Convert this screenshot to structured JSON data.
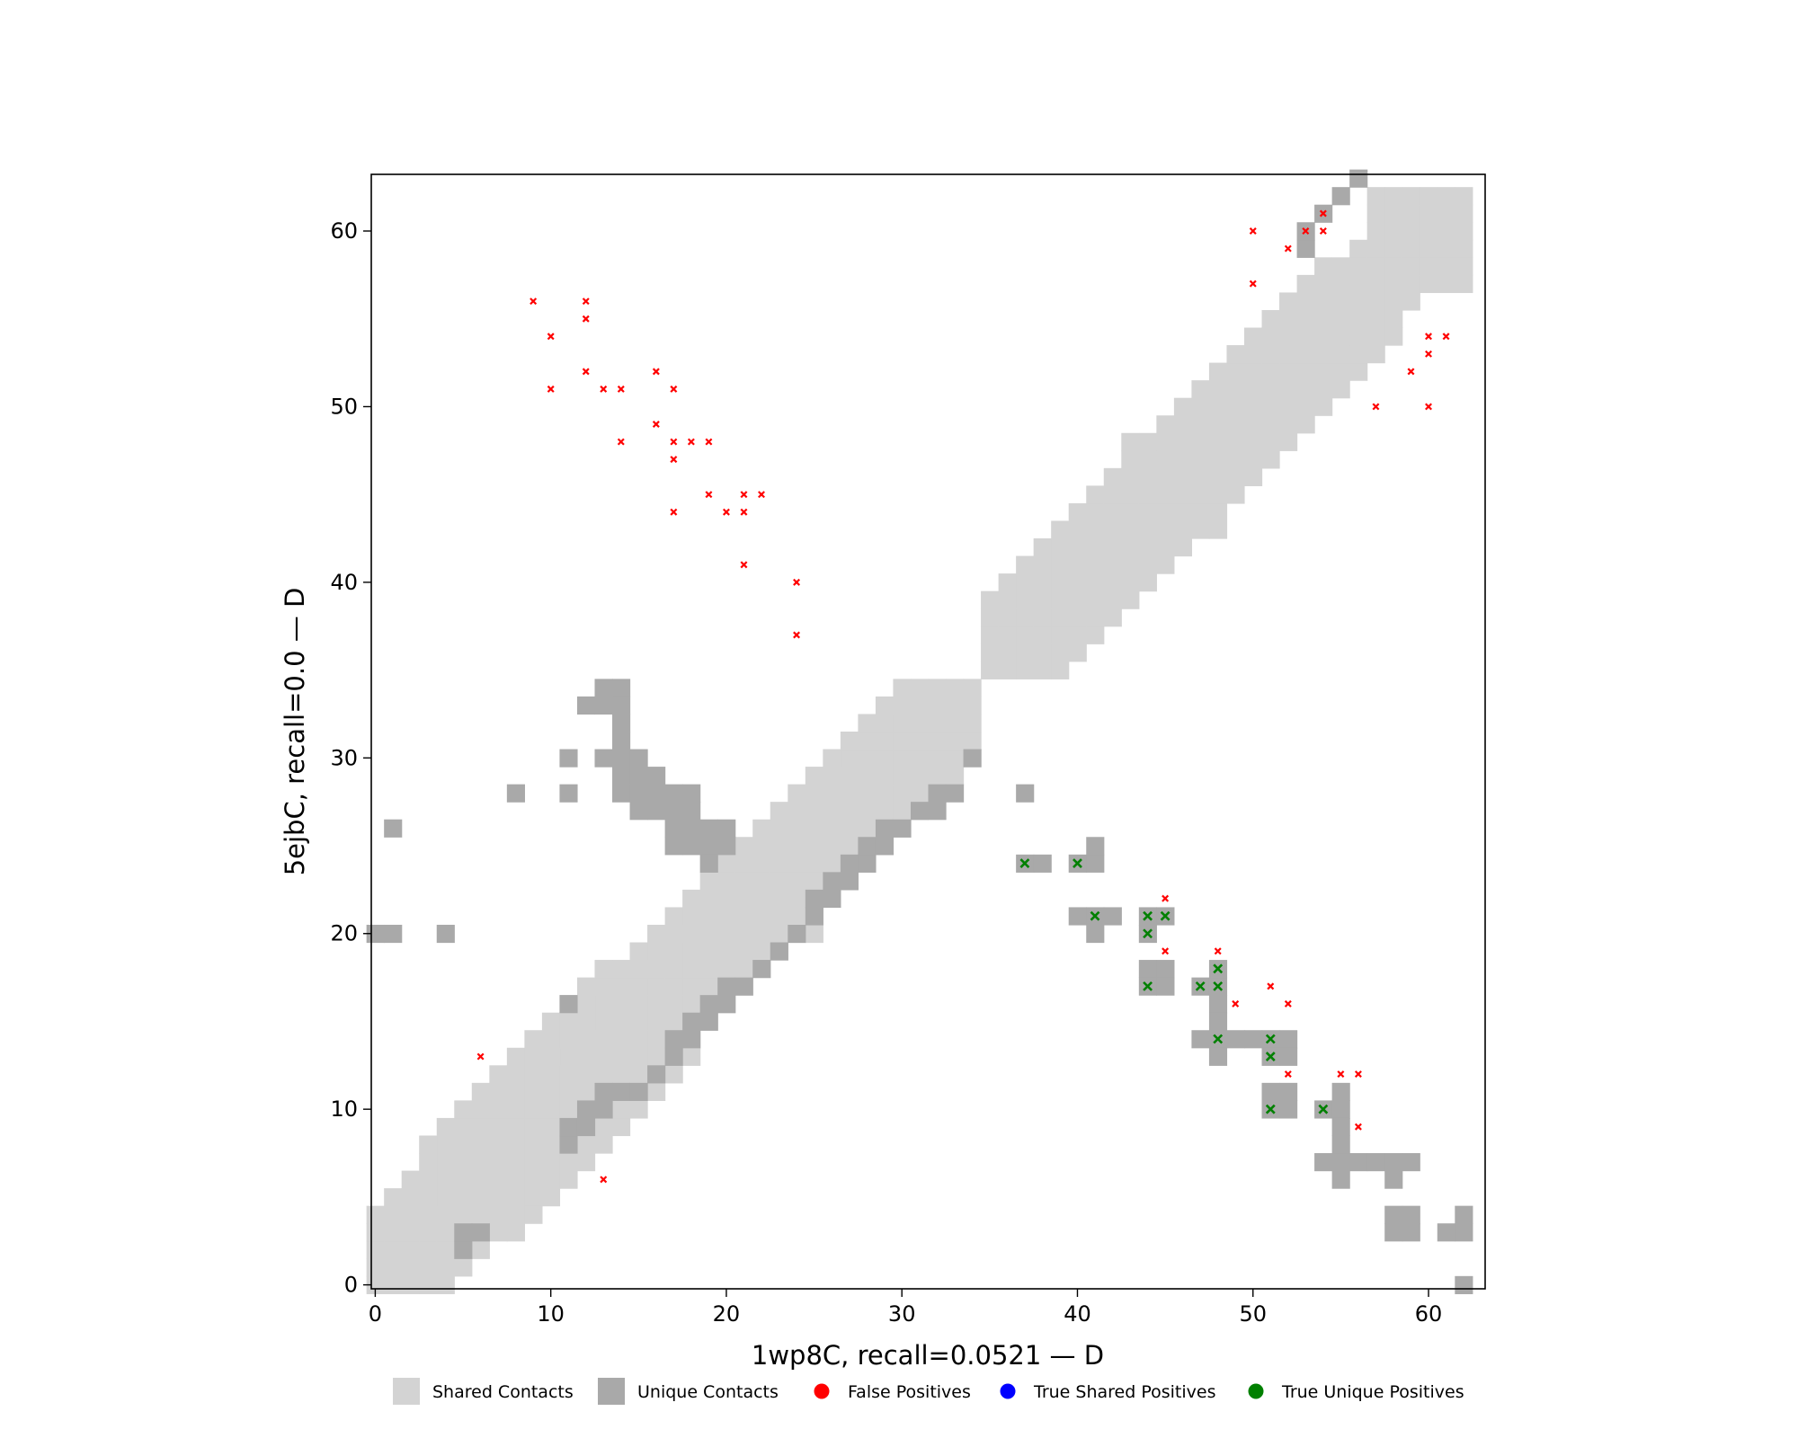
{
  "chart_data": {
    "type": "heatmap",
    "title": "",
    "xlabel": "1wp8C, recall=0.0521 — D",
    "ylabel": "5ejbC, recall=0.0 — D",
    "xlim": [
      0,
      63
    ],
    "ylim": [
      0,
      63
    ],
    "xticks": [
      0,
      10,
      20,
      30,
      40,
      50,
      60
    ],
    "yticks": [
      0,
      10,
      20,
      30,
      40,
      50,
      60
    ],
    "grid": false,
    "legend_position": "bottom",
    "legend": [
      {
        "label": "Shared Contacts",
        "marker": "square",
        "color": "#d3d3d3"
      },
      {
        "label": "Unique Contacts",
        "marker": "square",
        "color": "#a9a9a9"
      },
      {
        "label": "False Positives",
        "marker": "circle",
        "color": "#ff0000"
      },
      {
        "label": "True Shared Positives",
        "marker": "circle",
        "color": "#0000ff"
      },
      {
        "label": "True Unique Positives",
        "marker": "circle",
        "color": "#008000"
      }
    ],
    "colors": {
      "shared": "#d3d3d3",
      "unique": "#a9a9a9",
      "false_positive": "#ff0000",
      "true_shared_positive": "#0000ff",
      "true_unique_positive": "#008000"
    },
    "shared_band_lower": [
      [
        0,
        0,
        4
      ],
      [
        1,
        0,
        4
      ],
      [
        2,
        0,
        4
      ],
      [
        3,
        0,
        4
      ],
      [
        4,
        0,
        8
      ],
      [
        5,
        1,
        10
      ],
      [
        6,
        2,
        11
      ],
      [
        7,
        3,
        11
      ],
      [
        8,
        3,
        11
      ],
      [
        9,
        4,
        11
      ],
      [
        10,
        5,
        12
      ],
      [
        11,
        6,
        13
      ],
      [
        12,
        7,
        14
      ],
      [
        13,
        8,
        16
      ],
      [
        14,
        9,
        16
      ],
      [
        15,
        10,
        17
      ],
      [
        16,
        11,
        18
      ],
      [
        17,
        12,
        19
      ],
      [
        18,
        13,
        20
      ],
      [
        19,
        15,
        20
      ],
      [
        20,
        16,
        25
      ],
      [
        21,
        17,
        25
      ],
      [
        22,
        18,
        25
      ],
      [
        23,
        19,
        26
      ],
      [
        24,
        20,
        27
      ],
      [
        25,
        21,
        28
      ],
      [
        26,
        22,
        29
      ],
      [
        27,
        23,
        30
      ],
      [
        28,
        24,
        31
      ],
      [
        29,
        25,
        32
      ],
      [
        30,
        26,
        34
      ],
      [
        31,
        27,
        34
      ],
      [
        32,
        28,
        34
      ],
      [
        33,
        29,
        34
      ],
      [
        34,
        30,
        34
      ]
    ],
    "shared_band_upper": [
      [
        35,
        35,
        39
      ],
      [
        36,
        35,
        40
      ],
      [
        37,
        35,
        41
      ],
      [
        38,
        36,
        42
      ],
      [
        39,
        37,
        43
      ],
      [
        40,
        38,
        44
      ],
      [
        41,
        39,
        45
      ],
      [
        42,
        40,
        46
      ],
      [
        43,
        41,
        48
      ],
      [
        44,
        42,
        48
      ],
      [
        45,
        43,
        49
      ],
      [
        46,
        44,
        50
      ],
      [
        47,
        45,
        51
      ],
      [
        48,
        46,
        52
      ],
      [
        49,
        47,
        53
      ],
      [
        50,
        48,
        54
      ],
      [
        51,
        49,
        55
      ],
      [
        52,
        50,
        56
      ],
      [
        53,
        51,
        57
      ],
      [
        54,
        52,
        58
      ],
      [
        55,
        53,
        58
      ],
      [
        56,
        54,
        59
      ],
      [
        57,
        55,
        62
      ],
      [
        58,
        56,
        62
      ],
      [
        59,
        57,
        62
      ],
      [
        60,
        58,
        62
      ],
      [
        61,
        58,
        62
      ],
      [
        62,
        59,
        62
      ]
    ],
    "unique_cells": [
      [
        5,
        2
      ],
      [
        5,
        3
      ],
      [
        6,
        3
      ],
      [
        11,
        8
      ],
      [
        11,
        9
      ],
      [
        12,
        9
      ],
      [
        12,
        10
      ],
      [
        13,
        10
      ],
      [
        13,
        11
      ],
      [
        14,
        11
      ],
      [
        15,
        11
      ],
      [
        16,
        12
      ],
      [
        17,
        13
      ],
      [
        17,
        14
      ],
      [
        18,
        14
      ],
      [
        18,
        15
      ],
      [
        19,
        15
      ],
      [
        19,
        16
      ],
      [
        20,
        16
      ],
      [
        20,
        17
      ],
      [
        21,
        17
      ],
      [
        22,
        18
      ],
      [
        23,
        19
      ],
      [
        24,
        20
      ],
      [
        25,
        21
      ],
      [
        25,
        22
      ],
      [
        26,
        22
      ],
      [
        26,
        23
      ],
      [
        27,
        23
      ],
      [
        27,
        24
      ],
      [
        28,
        24
      ],
      [
        28,
        25
      ],
      [
        29,
        25
      ],
      [
        29,
        26
      ],
      [
        30,
        26
      ],
      [
        31,
        27
      ],
      [
        32,
        27
      ],
      [
        32,
        28
      ],
      [
        33,
        28
      ],
      [
        34,
        30
      ],
      [
        8,
        28
      ],
      [
        11,
        28
      ],
      [
        11,
        30
      ],
      [
        12,
        33
      ],
      [
        13,
        33
      ],
      [
        13,
        34
      ],
      [
        14,
        34
      ],
      [
        14,
        33
      ],
      [
        14,
        32
      ],
      [
        14,
        31
      ],
      [
        13,
        30
      ],
      [
        14,
        30
      ],
      [
        15,
        30
      ],
      [
        14,
        29
      ],
      [
        15,
        29
      ],
      [
        16,
        29
      ],
      [
        14,
        28
      ],
      [
        15,
        28
      ],
      [
        16,
        28
      ],
      [
        17,
        28
      ],
      [
        18,
        28
      ],
      [
        15,
        27
      ],
      [
        16,
        27
      ],
      [
        17,
        27
      ],
      [
        18,
        27
      ],
      [
        17,
        26
      ],
      [
        18,
        26
      ],
      [
        19,
        26
      ],
      [
        20,
        26
      ],
      [
        17,
        25
      ],
      [
        18,
        25
      ],
      [
        19,
        25
      ],
      [
        20,
        25
      ],
      [
        19,
        24
      ],
      [
        1,
        26
      ],
      [
        0,
        20
      ],
      [
        1,
        20
      ],
      [
        4,
        20
      ],
      [
        11,
        16
      ],
      [
        37,
        28
      ],
      [
        37,
        24
      ],
      [
        38,
        24
      ],
      [
        40,
        24
      ],
      [
        41,
        24
      ],
      [
        41,
        25
      ],
      [
        40,
        21
      ],
      [
        41,
        21
      ],
      [
        42,
        21
      ],
      [
        41,
        20
      ],
      [
        44,
        21
      ],
      [
        45,
        21
      ],
      [
        44,
        20
      ],
      [
        44,
        18
      ],
      [
        45,
        18
      ],
      [
        44,
        17
      ],
      [
        45,
        17
      ],
      [
        47,
        17
      ],
      [
        48,
        17
      ],
      [
        48,
        18
      ],
      [
        48,
        16
      ],
      [
        48,
        15
      ],
      [
        48,
        14
      ],
      [
        49,
        14
      ],
      [
        50,
        14
      ],
      [
        51,
        14
      ],
      [
        52,
        14
      ],
      [
        47,
        14
      ],
      [
        48,
        13
      ],
      [
        51,
        13
      ],
      [
        52,
        13
      ],
      [
        51,
        11
      ],
      [
        52,
        11
      ],
      [
        51,
        10
      ],
      [
        52,
        10
      ],
      [
        54,
        10
      ],
      [
        55,
        11
      ],
      [
        55,
        10
      ],
      [
        55,
        9
      ],
      [
        55,
        8
      ],
      [
        55,
        7
      ],
      [
        54,
        7
      ],
      [
        56,
        7
      ],
      [
        57,
        7
      ],
      [
        58,
        7
      ],
      [
        59,
        7
      ],
      [
        55,
        6
      ],
      [
        58,
        6
      ],
      [
        58,
        3
      ],
      [
        59,
        3
      ],
      [
        58,
        4
      ],
      [
        59,
        4
      ],
      [
        61,
        3
      ],
      [
        62,
        3
      ],
      [
        62,
        4
      ],
      [
        62,
        0
      ],
      [
        53,
        59
      ],
      [
        53,
        60
      ],
      [
        54,
        61
      ],
      [
        55,
        62
      ],
      [
        56,
        63
      ]
    ],
    "false_positives": [
      [
        9,
        56
      ],
      [
        12,
        56
      ],
      [
        12,
        55
      ],
      [
        10,
        54
      ],
      [
        12,
        52
      ],
      [
        10,
        51
      ],
      [
        13,
        51
      ],
      [
        14,
        51
      ],
      [
        16,
        52
      ],
      [
        17,
        51
      ],
      [
        16,
        49
      ],
      [
        14,
        48
      ],
      [
        17,
        48
      ],
      [
        18,
        48
      ],
      [
        19,
        48
      ],
      [
        17,
        47
      ],
      [
        19,
        45
      ],
      [
        21,
        45
      ],
      [
        22,
        45
      ],
      [
        17,
        44
      ],
      [
        20,
        44
      ],
      [
        21,
        44
      ],
      [
        21,
        41
      ],
      [
        24,
        40
      ],
      [
        24,
        37
      ],
      [
        6,
        13
      ],
      [
        13,
        6
      ],
      [
        50,
        60
      ],
      [
        50,
        57
      ],
      [
        52,
        59
      ],
      [
        53,
        60
      ],
      [
        54,
        61
      ],
      [
        54,
        60
      ],
      [
        57,
        50
      ],
      [
        59,
        52
      ],
      [
        60,
        54
      ],
      [
        61,
        54
      ],
      [
        60,
        53
      ],
      [
        60,
        50
      ],
      [
        45,
        22
      ],
      [
        45,
        19
      ],
      [
        48,
        19
      ],
      [
        49,
        16
      ],
      [
        51,
        17
      ],
      [
        52,
        16
      ],
      [
        52,
        12
      ],
      [
        55,
        12
      ],
      [
        56,
        12
      ],
      [
        56,
        9
      ]
    ],
    "true_unique_positives": [
      [
        37,
        24
      ],
      [
        40,
        24
      ],
      [
        41,
        21
      ],
      [
        44,
        21
      ],
      [
        45,
        21
      ],
      [
        44,
        20
      ],
      [
        44,
        17
      ],
      [
        47,
        17
      ],
      [
        48,
        18
      ],
      [
        48,
        17
      ],
      [
        48,
        14
      ],
      [
        51,
        14
      ],
      [
        51,
        13
      ],
      [
        51,
        10
      ],
      [
        54,
        10
      ]
    ],
    "true_shared_positives": []
  }
}
